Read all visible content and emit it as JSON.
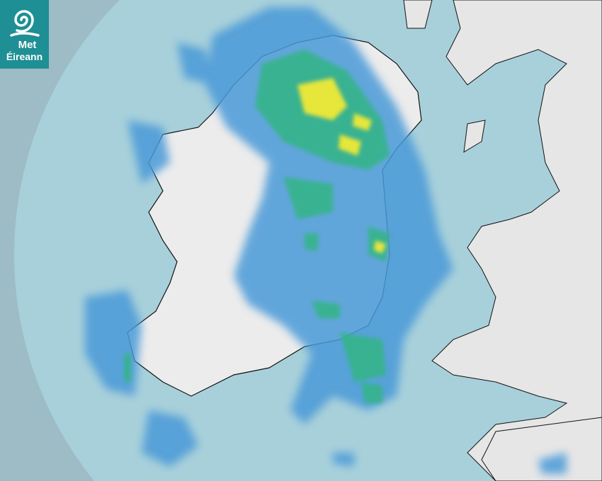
{
  "logo": {
    "line1": "Met",
    "line2": "Éireann",
    "color": "#1e8f94"
  },
  "map": {
    "type": "rainfall radar",
    "colors": {
      "sea_outside_range": "#9dbcc6",
      "sea_in_range": "#a8d0da",
      "land": "#ededed",
      "rain_light": "#4a9ad8",
      "rain_moderate": "#34b48a",
      "rain_heavy": "#e6e63a"
    }
  }
}
